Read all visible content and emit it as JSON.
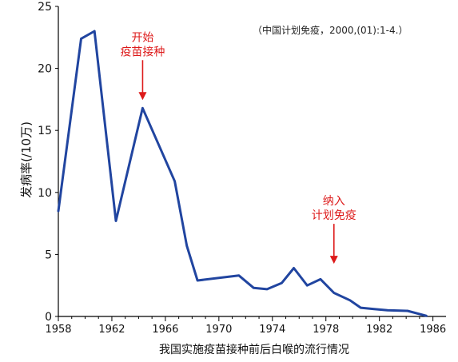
{
  "chart_data": {
    "type": "line",
    "xlabel": "我国实施疫苗接种前后白喉的流行情况",
    "ylabel": "发病率(/10万)",
    "citation": "（中国计划免疫，2000,(01):1-4.）",
    "xlim": [
      1958,
      1986.5
    ],
    "ylim": [
      0,
      25
    ],
    "xticks": [
      "1958",
      "1962",
      "1966",
      "1970",
      "1974",
      "1978",
      "1982",
      "1986"
    ],
    "yticks": [
      "0",
      "5",
      "10",
      "15",
      "20",
      "25"
    ],
    "series": [
      {
        "color": "#2145a0",
        "x": [
          1958,
          1959.7,
          1960.7,
          1962.3,
          1964.3,
          1966.7,
          1967.6,
          1968.4,
          1971.5,
          1972.6,
          1973.6,
          1974.7,
          1975.6,
          1976.6,
          1977.6,
          1978.6,
          1979.8,
          1980.6,
          1981.6,
          1982.6,
          1984.1,
          1985.5
        ],
        "y": [
          8.5,
          22.4,
          23.0,
          7.7,
          16.8,
          10.9,
          5.7,
          2.9,
          3.3,
          2.3,
          2.2,
          2.7,
          3.9,
          2.5,
          3.0,
          1.9,
          1.3,
          0.7,
          0.6,
          0.5,
          0.45,
          0.05
        ]
      }
    ],
    "annotations": [
      {
        "line1": "开始",
        "line2": "疫苗接种",
        "x": 1964.3,
        "y": 16.8,
        "color": "#dd1a1a"
      },
      {
        "line1": "纳入",
        "line2": "计划免疫",
        "x": 1978.6,
        "y": 3.6,
        "color": "#dd1a1a"
      }
    ]
  }
}
